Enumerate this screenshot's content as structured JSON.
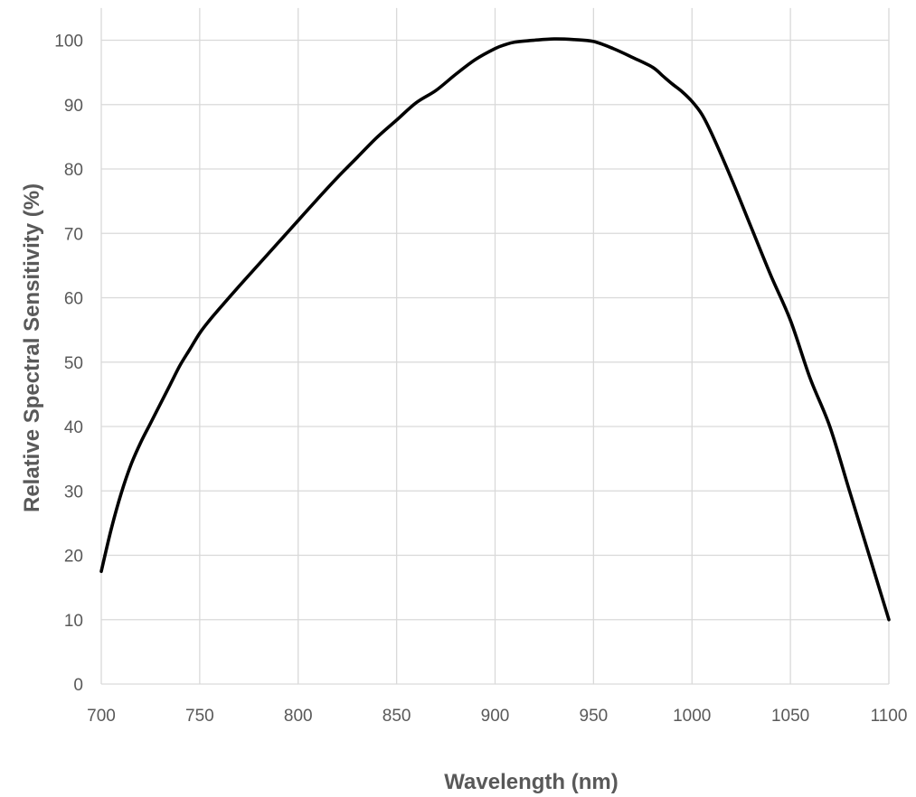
{
  "chart_data": {
    "type": "line",
    "title": "",
    "xlabel": "Wavelength (nm)",
    "ylabel": "Relative Spectral Sensitivity (%)",
    "xlim": [
      700,
      1100
    ],
    "ylim": [
      0,
      105
    ],
    "x_ticks": [
      700,
      750,
      800,
      850,
      900,
      950,
      1000,
      1050,
      1100
    ],
    "y_ticks": [
      0,
      10,
      20,
      30,
      40,
      50,
      60,
      70,
      80,
      90,
      100
    ],
    "grid": true,
    "legend": "none",
    "series": [
      {
        "color": "#000000",
        "x": [
          700,
          705,
          710,
          715,
          720,
          725,
          730,
          735,
          740,
          745,
          750,
          755,
          760,
          770,
          780,
          790,
          800,
          810,
          820,
          830,
          840,
          850,
          860,
          870,
          880,
          890,
          900,
          905,
          910,
          920,
          930,
          940,
          950,
          960,
          970,
          980,
          985,
          990,
          995,
          1000,
          1005,
          1010,
          1020,
          1030,
          1040,
          1050,
          1060,
          1070,
          1080,
          1090,
          1100
        ],
        "y": [
          17.5,
          24,
          29.5,
          34,
          37.5,
          40.5,
          43.5,
          46.5,
          49.5,
          52,
          54.5,
          56.5,
          58.3,
          61.8,
          65.2,
          68.6,
          72,
          75.4,
          78.7,
          81.8,
          84.9,
          87.6,
          90.3,
          92.2,
          94.7,
          97,
          98.7,
          99.3,
          99.7,
          100,
          100.2,
          100.1,
          99.8,
          98.7,
          97.3,
          95.8,
          94.5,
          93.2,
          92,
          90.5,
          88.5,
          85.5,
          78.5,
          71,
          63.5,
          56.5,
          47.5,
          40,
          30,
          20,
          10
        ]
      }
    ]
  }
}
